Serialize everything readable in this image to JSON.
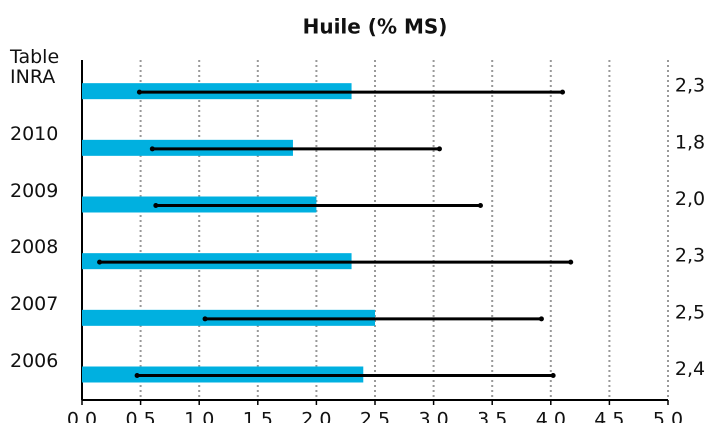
{
  "chart_data": {
    "type": "bar",
    "orientation": "horizontal",
    "title": "Huile (% MS)",
    "categories": [
      "Table INRA",
      "2010",
      "2009",
      "2008",
      "2007",
      "2006"
    ],
    "values": [
      2.3,
      1.8,
      2.0,
      2.3,
      2.5,
      2.4
    ],
    "value_labels": [
      "2,3",
      "1,8",
      "2,0",
      "2,3",
      "2,5",
      "2,4"
    ],
    "low": [
      0.49,
      0.6,
      0.63,
      0.15,
      1.05,
      0.47
    ],
    "high": [
      4.1,
      3.05,
      3.4,
      4.17,
      3.92,
      4.02
    ],
    "color": "#00b0e0",
    "range_color": "#000000",
    "xlim": [
      0,
      5
    ],
    "xticks": [
      {
        "value": 0,
        "label": "0,0"
      },
      {
        "value": 0.5,
        "label": "0,5"
      },
      {
        "value": 1,
        "label": "1,0"
      },
      {
        "value": 1.5,
        "label": "1,5"
      },
      {
        "value": 2,
        "label": "2,0"
      },
      {
        "value": 2.5,
        "label": "2,5"
      },
      {
        "value": 3,
        "label": "3,0"
      },
      {
        "value": 3.5,
        "label": "3,5"
      },
      {
        "value": 4,
        "label": "4,0"
      },
      {
        "value": 4.5,
        "label": "4,5"
      },
      {
        "value": 5,
        "label": "5,0"
      }
    ],
    "grid": true
  }
}
